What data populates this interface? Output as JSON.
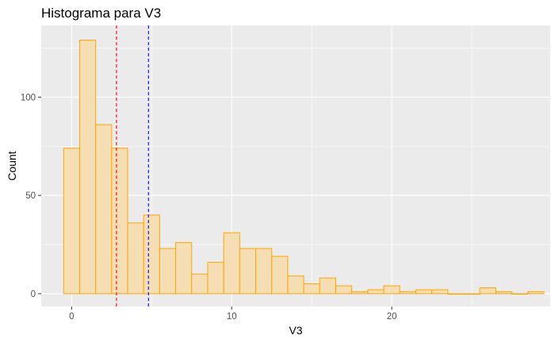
{
  "chart_data": {
    "type": "bar",
    "title": "Histograma para V3",
    "xlabel": "V3",
    "ylabel": "Count",
    "xlim": [
      -1.9,
      29.9
    ],
    "ylim": [
      -6.5,
      136.5
    ],
    "x_ticks": [
      0,
      10,
      20
    ],
    "y_ticks": [
      0,
      50,
      100
    ],
    "bin_width": 1,
    "bins": [
      {
        "x": 0,
        "count": 74
      },
      {
        "x": 1,
        "count": 129
      },
      {
        "x": 2,
        "count": 86
      },
      {
        "x": 3,
        "count": 74
      },
      {
        "x": 4,
        "count": 36
      },
      {
        "x": 5,
        "count": 40
      },
      {
        "x": 6,
        "count": 23
      },
      {
        "x": 7,
        "count": 26
      },
      {
        "x": 8,
        "count": 10
      },
      {
        "x": 9,
        "count": 16
      },
      {
        "x": 10,
        "count": 31
      },
      {
        "x": 11,
        "count": 23
      },
      {
        "x": 12,
        "count": 23
      },
      {
        "x": 13,
        "count": 19
      },
      {
        "x": 14,
        "count": 9
      },
      {
        "x": 15,
        "count": 5
      },
      {
        "x": 16,
        "count": 8
      },
      {
        "x": 17,
        "count": 4
      },
      {
        "x": 18,
        "count": 1
      },
      {
        "x": 19,
        "count": 2
      },
      {
        "x": 20,
        "count": 4
      },
      {
        "x": 21,
        "count": 1
      },
      {
        "x": 22,
        "count": 2
      },
      {
        "x": 23,
        "count": 2
      },
      {
        "x": 24,
        "count": 0
      },
      {
        "x": 25,
        "count": 0
      },
      {
        "x": 26,
        "count": 3
      },
      {
        "x": 27,
        "count": 1
      },
      {
        "x": 28,
        "count": 0
      },
      {
        "x": 29,
        "count": 1
      }
    ],
    "reference_lines": [
      {
        "value": 2.8,
        "color": "#ff0000",
        "style": "dashed"
      },
      {
        "value": 4.8,
        "color": "#0000ff",
        "style": "dashed"
      }
    ],
    "grid": true,
    "legend": "none",
    "colors": {
      "bar_fill": "#f5deb3",
      "bar_stroke": "#ffa500",
      "panel_background": "#ebebeb",
      "grid": "#ffffff"
    }
  }
}
